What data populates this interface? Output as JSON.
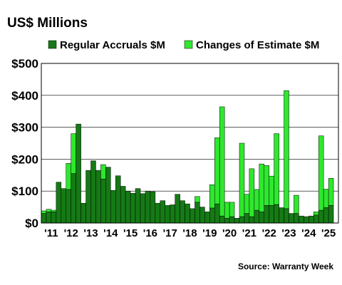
{
  "chart_data": {
    "type": "bar",
    "stacked": true,
    "title": "US$ Millions",
    "source": "Source: Warranty Week",
    "legend_position": "top",
    "grid": true,
    "ylim": [
      0,
      500
    ],
    "y_ticks": [
      "$0",
      "$100",
      "$200",
      "$300",
      "$400",
      "$500"
    ],
    "y_tick_values": [
      0,
      100,
      200,
      300,
      400,
      500
    ],
    "x_ticks": [
      "'11",
      "'12",
      "'13",
      "'14",
      "'15",
      "'16",
      "'17",
      "'18",
      "'19",
      "'20",
      "'21",
      "'22",
      "'23",
      "'24",
      "'25"
    ],
    "x_tick_years": [
      2011,
      2012,
      2013,
      2014,
      2015,
      2016,
      2017,
      2018,
      2019,
      2020,
      2021,
      2022,
      2023,
      2024,
      2025
    ],
    "categories": [
      "2011 Q1",
      "2011 Q2",
      "2011 Q3",
      "2011 Q4",
      "2012 Q1",
      "2012 Q2",
      "2012 Q3",
      "2012 Q4",
      "2013 Q1",
      "2013 Q2",
      "2013 Q3",
      "2013 Q4",
      "2014 Q1",
      "2014 Q2",
      "2014 Q3",
      "2014 Q4",
      "2015 Q1",
      "2015 Q2",
      "2015 Q3",
      "2015 Q4",
      "2016 Q1",
      "2016 Q2",
      "2016 Q3",
      "2016 Q4",
      "2017 Q1",
      "2017 Q2",
      "2017 Q3",
      "2017 Q4",
      "2018 Q1",
      "2018 Q2",
      "2018 Q3",
      "2018 Q4",
      "2019 Q1",
      "2019 Q2",
      "2019 Q3",
      "2019 Q4",
      "2020 Q1",
      "2020 Q2",
      "2020 Q3",
      "2020 Q4",
      "2021 Q1",
      "2021 Q2",
      "2021 Q3",
      "2021 Q4",
      "2022 Q1",
      "2022 Q2",
      "2022 Q3",
      "2022 Q4",
      "2023 Q1",
      "2023 Q2",
      "2023 Q3",
      "2023 Q4",
      "2024 Q1",
      "2024 Q2",
      "2024 Q3",
      "2024 Q4",
      "2025 Q1",
      "2025 Q2",
      "2025 Q3",
      "2025 Q4"
    ],
    "series": [
      {
        "name": "Regular Accruals $M",
        "color": "#157a15",
        "values": [
          30,
          35,
          35,
          128,
          108,
          105,
          155,
          310,
          62,
          165,
          195,
          165,
          138,
          175,
          102,
          148,
          115,
          100,
          93,
          108,
          92,
          100,
          98,
          62,
          70,
          55,
          57,
          90,
          70,
          60,
          45,
          65,
          50,
          35,
          47,
          60,
          22,
          15,
          20,
          15,
          20,
          30,
          20,
          40,
          35,
          55,
          55,
          58,
          48,
          45,
          30,
          30,
          22,
          20,
          22,
          25,
          40,
          48,
          55,
          0
        ],
        "values_note_na": "last quarter not shown"
      },
      {
        "name": "Changes of Estimate $M",
        "color": "#2ee82e",
        "values": [
          8,
          8,
          5,
          0,
          0,
          82,
          125,
          0,
          0,
          0,
          0,
          0,
          45,
          0,
          0,
          0,
          0,
          0,
          0,
          0,
          0,
          0,
          0,
          0,
          0,
          0,
          0,
          0,
          0,
          0,
          0,
          18,
          0,
          0,
          73,
          207,
          342,
          50,
          45,
          0,
          230,
          60,
          150,
          65,
          150,
          125,
          92,
          222,
          0,
          370,
          0,
          57,
          0,
          0,
          0,
          10,
          233,
          58,
          85,
          0
        ]
      }
    ]
  }
}
